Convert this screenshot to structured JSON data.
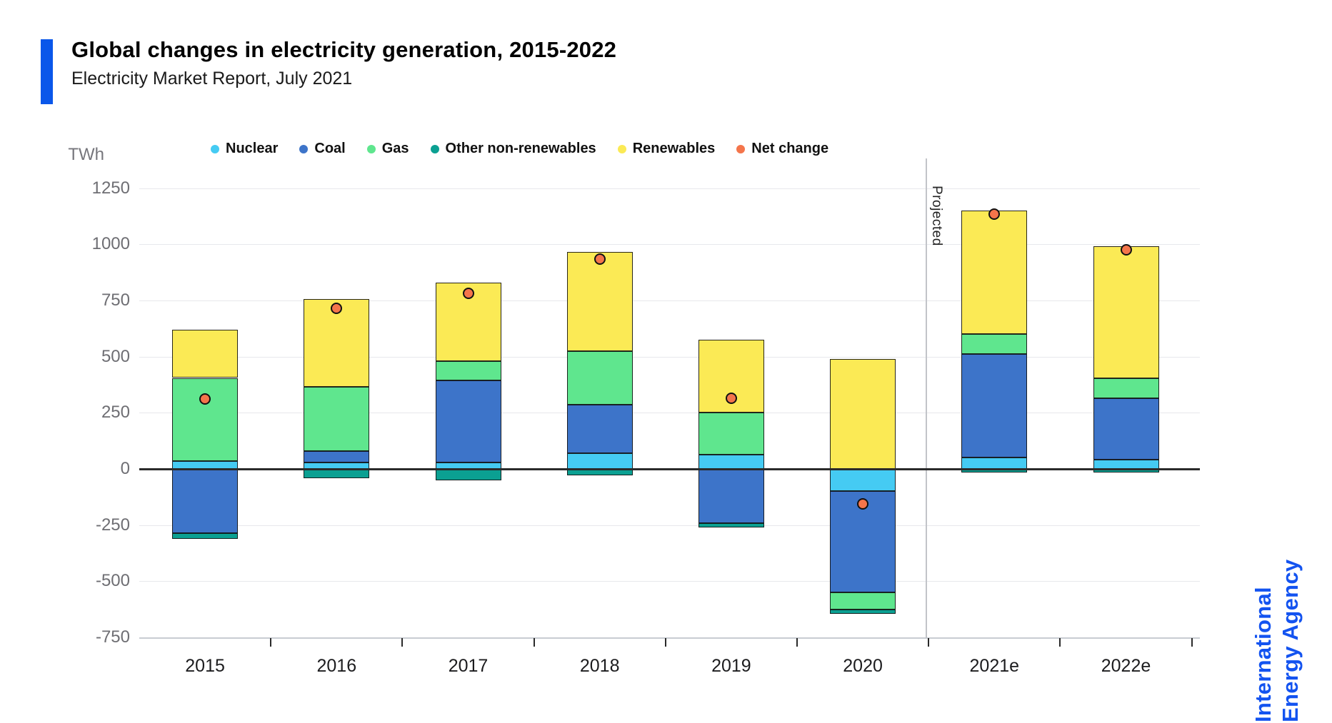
{
  "header": {
    "title": "Global changes in electricity generation, 2015-2022",
    "subtitle": "Electricity Market Report, July 2021"
  },
  "branding": {
    "line1": "International",
    "line2": "Energy Agency"
  },
  "legend": {
    "items": [
      {
        "label": "Nuclear",
        "color": "#45CBF3"
      },
      {
        "label": "Coal",
        "color": "#3D74C9"
      },
      {
        "label": "Gas",
        "color": "#5FE68E"
      },
      {
        "label": "Other non-renewables",
        "color": "#0BA092"
      },
      {
        "label": "Renewables",
        "color": "#FBEA55"
      },
      {
        "label": "Net change",
        "color": "#F4754B"
      }
    ]
  },
  "chart": {
    "unit_label": "TWh",
    "projected_label": "Projected"
  },
  "chart_data": {
    "type": "bar",
    "stacked": true,
    "title": "Global changes in electricity generation, 2015-2022",
    "ylabel": "TWh",
    "ylim": [
      -750,
      1250
    ],
    "y_ticks": [
      1250,
      1000,
      750,
      500,
      250,
      0,
      -250,
      -500,
      -750
    ],
    "grid": true,
    "legend_position": "top",
    "categories": [
      "2015",
      "2016",
      "2017",
      "2018",
      "2019",
      "2020",
      "2021e",
      "2022e"
    ],
    "series": [
      {
        "name": "Nuclear",
        "color": "#45CBF3",
        "values": [
          35,
          30,
          30,
          70,
          65,
          -100,
          50,
          40
        ]
      },
      {
        "name": "Coal",
        "color": "#3D74C9",
        "values": [
          -285,
          50,
          365,
          215,
          -240,
          -450,
          460,
          275
        ]
      },
      {
        "name": "Gas",
        "color": "#5FE68E",
        "values": [
          370,
          285,
          85,
          240,
          185,
          -75,
          90,
          90
        ]
      },
      {
        "name": "Renewables",
        "color": "#FBEA55",
        "values": [
          215,
          390,
          350,
          440,
          325,
          490,
          550,
          585
        ]
      },
      {
        "name": "Other non-renewables",
        "color": "#0BA092",
        "values": [
          -25,
          -40,
          -50,
          -30,
          -20,
          -20,
          -15,
          -15
        ]
      }
    ],
    "net_change": {
      "name": "Net change",
      "color": "#F4754B",
      "values": [
        310,
        715,
        780,
        935,
        315,
        -155,
        1135,
        975
      ]
    },
    "annotations": [
      {
        "text": "Projected",
        "applies_to": [
          "2021e",
          "2022e"
        ]
      }
    ]
  },
  "colors": {
    "accent": "#0A57EA",
    "iea_blue": "#1353F0",
    "gridline": "#e7e8ec",
    "zero_line": "#2a2a2a"
  }
}
